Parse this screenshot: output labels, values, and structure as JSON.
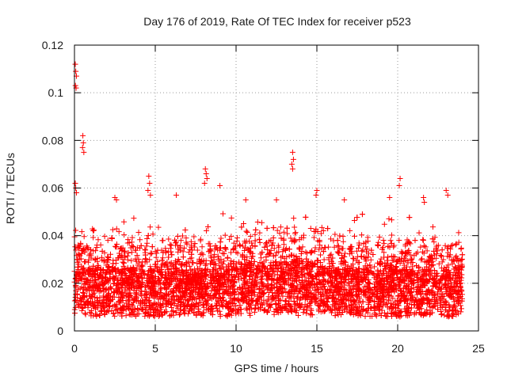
{
  "chart_data": {
    "type": "scatter",
    "title": "Day 176 of 2019, Rate Of TEC Index for receiver p523",
    "xlabel": "GPS time / hours",
    "ylabel": "ROTI / TECUs",
    "xlim": [
      0,
      25
    ],
    "ylim": [
      0,
      0.12
    ],
    "x_ticks": [
      0,
      5,
      10,
      15,
      20,
      25
    ],
    "y_ticks": [
      0,
      0.02,
      0.04,
      0.06,
      0.08,
      0.1,
      0.12
    ],
    "x_tick_labels": [
      "0",
      "5",
      "10",
      "15",
      "20",
      "25"
    ],
    "y_tick_labels": [
      "0",
      "0.02",
      "0.04",
      "0.06",
      "0.08",
      "0.1",
      "0.12"
    ],
    "grid": true,
    "marker": "+",
    "color": "#ff0000",
    "series": [
      {
        "name": "ROTI",
        "points": [
          [
            0.05,
            0.112
          ],
          [
            0.08,
            0.109
          ],
          [
            0.12,
            0.107
          ],
          [
            0.06,
            0.103
          ],
          [
            0.1,
            0.102
          ],
          [
            0.52,
            0.082
          ],
          [
            0.55,
            0.079
          ],
          [
            0.5,
            0.077
          ],
          [
            0.58,
            0.075
          ],
          [
            0.05,
            0.062
          ],
          [
            0.08,
            0.06
          ],
          [
            0.12,
            0.058
          ],
          [
            4.6,
            0.065
          ],
          [
            4.65,
            0.062
          ],
          [
            4.55,
            0.059
          ],
          [
            4.7,
            0.057
          ],
          [
            8.1,
            0.068
          ],
          [
            8.15,
            0.066
          ],
          [
            8.2,
            0.064
          ],
          [
            8.05,
            0.062
          ],
          [
            9.0,
            0.061
          ],
          [
            13.5,
            0.075
          ],
          [
            13.55,
            0.072
          ],
          [
            13.45,
            0.07
          ],
          [
            13.5,
            0.068
          ],
          [
            15.0,
            0.059
          ],
          [
            14.95,
            0.057
          ],
          [
            20.15,
            0.064
          ],
          [
            20.1,
            0.061
          ],
          [
            21.6,
            0.056
          ],
          [
            21.65,
            0.054
          ],
          [
            23.0,
            0.059
          ],
          [
            23.1,
            0.057
          ],
          [
            2.5,
            0.056
          ],
          [
            2.6,
            0.055
          ],
          [
            6.3,
            0.057
          ],
          [
            10.6,
            0.055
          ],
          [
            12.5,
            0.055
          ],
          [
            16.7,
            0.055
          ],
          [
            19.5,
            0.056
          ],
          [
            0.2,
            0.035
          ],
          [
            0.3,
            0.032
          ],
          [
            0.15,
            0.03
          ],
          [
            0.25,
            0.028
          ]
        ]
      }
    ]
  }
}
